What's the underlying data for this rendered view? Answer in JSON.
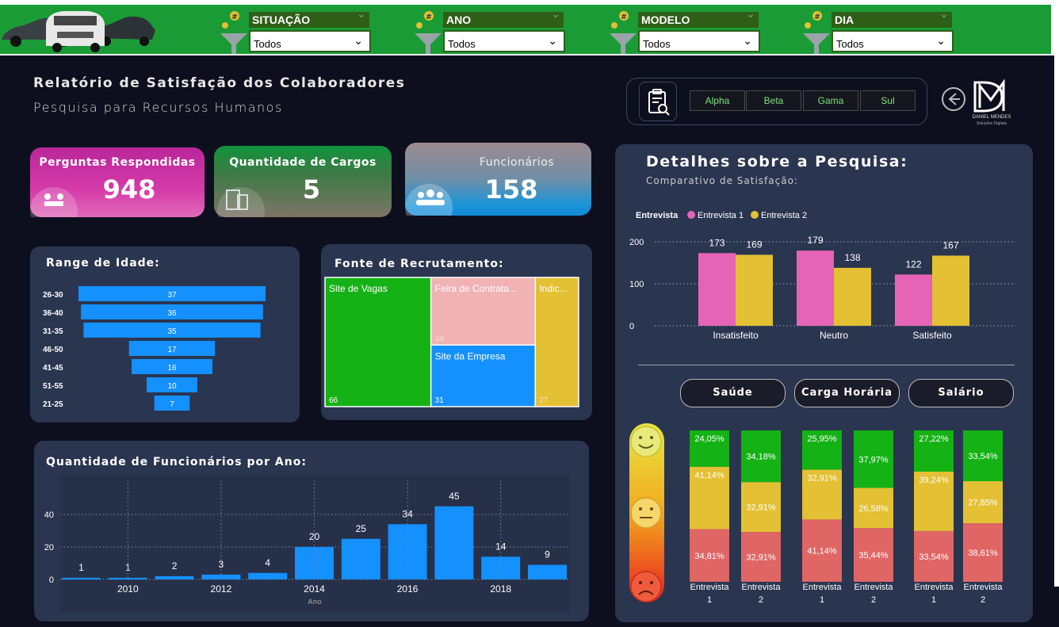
{
  "filters": [
    {
      "label": "SITUAÇÃO",
      "value": "Todos"
    },
    {
      "label": "ANO",
      "value": "Todos"
    },
    {
      "label": "MODELO",
      "value": "Todos"
    },
    {
      "label": "DIA",
      "value": "Todos"
    }
  ],
  "header": {
    "title": "Relatório de Satisfação dos Colaboradores",
    "subtitle": "Pesquisa para Recursos Humanos"
  },
  "tabs": [
    "Alpha",
    "Beta",
    "Gama",
    "Sul"
  ],
  "logo": {
    "name": "DANIEL MENDES",
    "tagline": "Soluções Digitais"
  },
  "kpis": [
    {
      "title": "Perguntas Respondidas",
      "value": "948"
    },
    {
      "title": "Quantidade de Cargos",
      "value": "5"
    },
    {
      "title": "Funcionários",
      "value": "158"
    }
  ],
  "age_range": {
    "title": "Range de Idade:",
    "chart_data": {
      "type": "bar",
      "categories": [
        "26-30",
        "36-40",
        "31-35",
        "46-50",
        "41-45",
        "51-55",
        "21-25"
      ],
      "values": [
        37,
        36,
        35,
        17,
        16,
        10,
        7
      ]
    }
  },
  "recruitment": {
    "title": "Fonte de Recrutamento:",
    "chart_data": {
      "type": "treemap",
      "items": [
        {
          "label": "Site de Vagas",
          "value": 66,
          "color": "#14b214"
        },
        {
          "label": "Feira de Contrata...",
          "value": 34,
          "color": "#f1b2b4"
        },
        {
          "label": "Site da Empresa",
          "value": 31,
          "color": "#1490ff"
        },
        {
          "label": "Indic...",
          "value": 27,
          "color": "#e3c034"
        }
      ]
    }
  },
  "employees_year": {
    "title": "Quantidade de Funcionários por Ano:",
    "xlabel": "Ano",
    "chart_data": {
      "type": "bar",
      "x": [
        2009,
        2010,
        2011,
        2012,
        2013,
        2014,
        2015,
        2016,
        2017,
        2018,
        2019
      ],
      "values": [
        1,
        1,
        2,
        3,
        4,
        20,
        25,
        34,
        45,
        14,
        9
      ],
      "xticks": [
        "2010",
        "2012",
        "2014",
        "2016",
        "2018"
      ],
      "yticks": [
        "0",
        "20",
        "40"
      ],
      "ylim": [
        0,
        50
      ],
      "color": "#1490ff"
    }
  },
  "details": {
    "title": "Detalhes sobre a Pesquisa:",
    "subtitle": "Comparativo de Satisfação:",
    "legend_title": "Entrevista",
    "chart_data": {
      "type": "bar",
      "categories": [
        "Insatisfeito",
        "Neutro",
        "Satisfeito"
      ],
      "series": [
        {
          "name": "Entrevista 1",
          "values": [
            173,
            179,
            122
          ],
          "color": "#e664b5"
        },
        {
          "name": "Entrevista 2",
          "values": [
            169,
            138,
            167
          ],
          "color": "#e3c034"
        }
      ],
      "yticks": [
        "0",
        "100",
        "200"
      ],
      "ylim": [
        0,
        200
      ]
    }
  },
  "topic_buttons": [
    "Saúde",
    "Carga Horária",
    "Salário"
  ],
  "stacked": {
    "chart_data": {
      "type": "bar",
      "groups": [
        {
          "columns": [
            {
              "label": [
                "Entrevista",
                "1"
              ],
              "green": "24,05%",
              "yellow": "41,14%",
              "red": "34,81%",
              "g": 24.05,
              "y": 41.14,
              "r": 34.81
            },
            {
              "label": [
                "Entrevista",
                "2"
              ],
              "green": "34,18%",
              "yellow": "32,91%",
              "red": "32,91%",
              "g": 34.18,
              "y": 32.91,
              "r": 32.91
            }
          ]
        },
        {
          "columns": [
            {
              "label": [
                "Entrevista",
                "1"
              ],
              "green": "25,95%",
              "yellow": "32,91%",
              "red": "41,14%",
              "g": 25.95,
              "y": 32.91,
              "r": 41.14
            },
            {
              "label": [
                "Entrevista",
                "2"
              ],
              "green": "37,97%",
              "yellow": "26,58%",
              "red": "35,44%",
              "g": 37.97,
              "y": 26.58,
              "r": 35.44
            }
          ]
        },
        {
          "columns": [
            {
              "label": [
                "Entrevista",
                "1"
              ],
              "green": "27,22%",
              "yellow": "39,24%",
              "red": "33,54%",
              "g": 27.22,
              "y": 39.24,
              "r": 33.54
            },
            {
              "label": [
                "Entrevista",
                "2"
              ],
              "green": "33,54%",
              "yellow": "27,85%",
              "red": "38,61%",
              "g": 33.54,
              "y": 27.85,
              "r": 38.61
            }
          ]
        }
      ],
      "colors": {
        "green": "#14b214",
        "yellow": "#e3c034",
        "red": "#e06666"
      }
    }
  }
}
